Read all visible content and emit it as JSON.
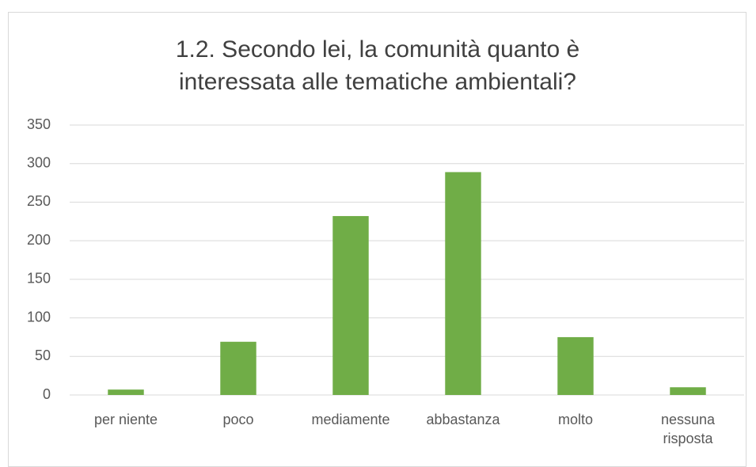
{
  "chart_data": {
    "type": "bar",
    "title": "1.2. Secondo lei, la comunità quanto è interessata alle tematiche ambientali?",
    "categories": [
      "per niente",
      "poco",
      "mediamente",
      "abbastanza",
      "molto",
      "nessuna risposta"
    ],
    "values": [
      7,
      69,
      232,
      289,
      75,
      10
    ],
    "color": "#70ad47",
    "ylim": [
      0,
      350
    ],
    "yticks": [
      0,
      50,
      100,
      150,
      200,
      250,
      300,
      350
    ],
    "grid": true
  }
}
